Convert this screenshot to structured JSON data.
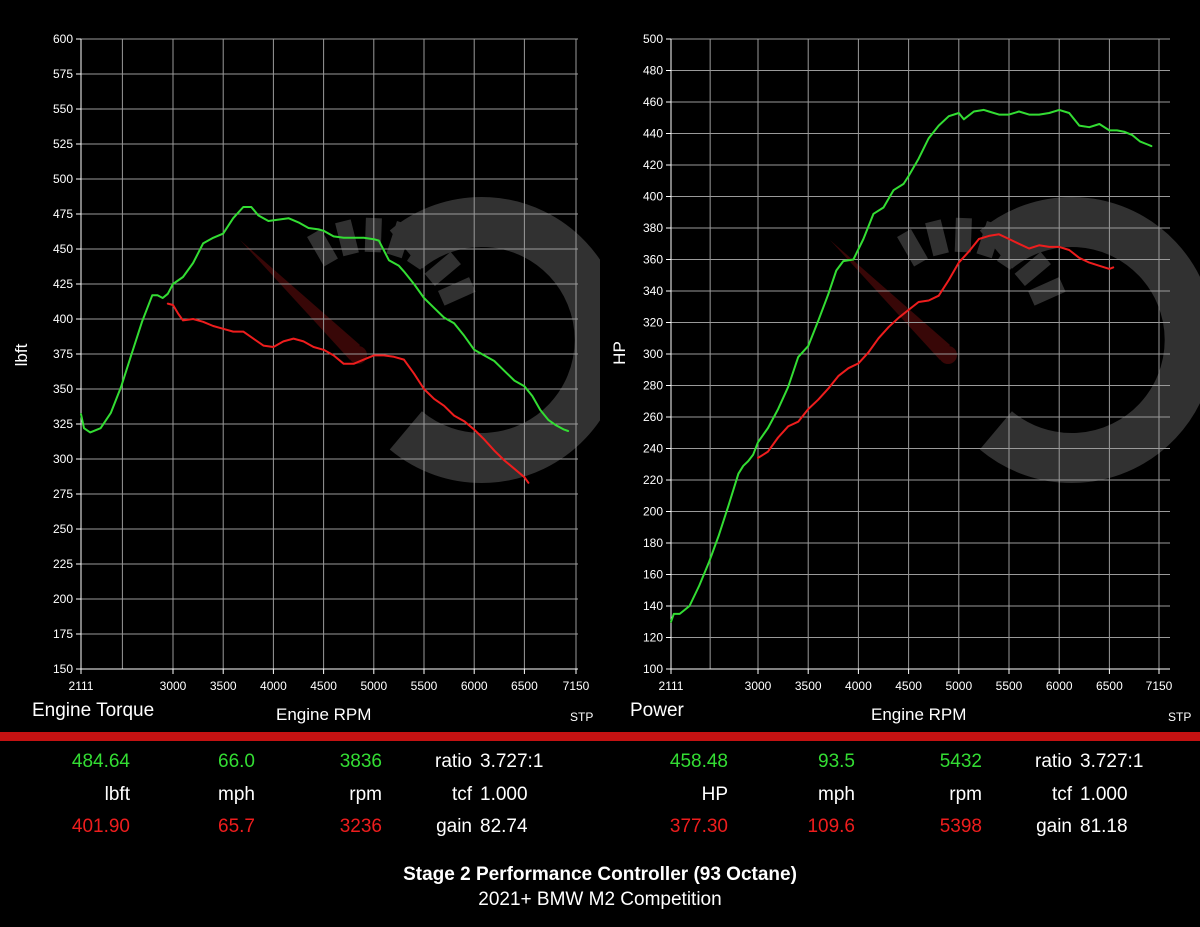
{
  "colors": {
    "series_new": "#33dd33",
    "series_stock": "#ee1d1d",
    "background": "#000000",
    "grid": "#9a9a9a",
    "bar": "#c41212"
  },
  "chart_data": [
    {
      "type": "line",
      "ylabel": "lbft",
      "title_label": "Engine Torque",
      "xlabel": "Engine RPM",
      "corner_label": "STP",
      "xlim": [
        2111,
        7150
      ],
      "ylim": [
        150,
        600
      ],
      "x_ticks": [
        "2111",
        "3000",
        "3500",
        "4000",
        "4500",
        "5000",
        "5500",
        "6000",
        "6500",
        "7150"
      ],
      "x_tick_values": [
        2111,
        3000,
        3500,
        4000,
        4500,
        5000,
        5500,
        6000,
        6500,
        7150
      ],
      "y_ticks": [
        150,
        175,
        200,
        225,
        250,
        275,
        300,
        325,
        350,
        375,
        400,
        425,
        450,
        475,
        500,
        525,
        550,
        575,
        600
      ],
      "grid": true,
      "series": [
        {
          "color": "#33dd33",
          "x": [
            2111,
            2140,
            2200,
            2300,
            2400,
            2500,
            2600,
            2700,
            2800,
            2850,
            2900,
            2950,
            3000,
            3100,
            3200,
            3300,
            3400,
            3500,
            3600,
            3700,
            3780,
            3850,
            3950,
            4050,
            4150,
            4250,
            4350,
            4450,
            4500,
            4600,
            4700,
            4800,
            4900,
            5000,
            5050,
            5150,
            5250,
            5300,
            5400,
            5500,
            5600,
            5700,
            5800,
            5900,
            6000,
            6100,
            6200,
            6300,
            6400,
            6500,
            6600,
            6700,
            6800,
            6900,
            7000,
            7050
          ],
          "y": [
            332,
            322,
            319,
            322,
            333,
            352,
            375,
            398,
            417,
            417,
            415,
            418,
            425,
            430,
            440,
            454,
            458,
            461,
            472,
            480,
            480,
            474,
            470,
            471,
            472,
            469,
            465,
            464,
            463,
            459,
            458,
            458,
            458,
            457,
            456,
            442,
            438,
            434,
            425,
            415,
            408,
            401,
            397,
            388,
            378,
            374,
            370,
            363,
            356,
            352,
            345,
            335,
            328,
            324,
            321,
            320
          ]
        },
        {
          "color": "#ee1d1d",
          "x": [
            2950,
            3000,
            3050,
            3100,
            3200,
            3300,
            3400,
            3500,
            3600,
            3700,
            3800,
            3900,
            4000,
            4100,
            4200,
            4300,
            4400,
            4500,
            4600,
            4700,
            4800,
            4900,
            5000,
            5100,
            5200,
            5300,
            5400,
            5500,
            5600,
            5700,
            5800,
            5900,
            6000,
            6100,
            6200,
            6300,
            6400,
            6500,
            6550
          ],
          "y": [
            411,
            410,
            404,
            399,
            400,
            398,
            395,
            393,
            391,
            391,
            386,
            381,
            380,
            384,
            386,
            384,
            380,
            378,
            374,
            368,
            368,
            371,
            374,
            374,
            373,
            371,
            361,
            350,
            343,
            338,
            331,
            327,
            321,
            314,
            306,
            299,
            293,
            287,
            283
          ]
        }
      ],
      "stats": {
        "new": [
          "484.64",
          "66.0",
          "3836"
        ],
        "units": [
          "lbft",
          "mph",
          "rpm"
        ],
        "stock": [
          "401.90",
          "65.7",
          "3236"
        ],
        "ratio_label": "ratio",
        "ratio_value": "3.727:1",
        "tcf_label": "tcf",
        "tcf_value": "1.000",
        "gain_label": "gain",
        "gain_value": "82.74"
      }
    },
    {
      "type": "line",
      "ylabel": "HP",
      "title_label": "Power",
      "xlabel": "Engine RPM",
      "corner_label": "STP",
      "xlim": [
        2111,
        7150
      ],
      "ylim": [
        100,
        500
      ],
      "x_ticks": [
        "2111",
        "3000",
        "3500",
        "4000",
        "4500",
        "5000",
        "5500",
        "6000",
        "6500",
        "7150"
      ],
      "x_tick_values": [
        2111,
        3000,
        3500,
        4000,
        4500,
        5000,
        5500,
        6000,
        6500,
        7150
      ],
      "y_ticks": [
        100,
        120,
        140,
        160,
        180,
        200,
        220,
        240,
        260,
        280,
        300,
        320,
        340,
        360,
        380,
        400,
        420,
        440,
        460,
        480,
        500
      ],
      "grid": true,
      "series": [
        {
          "color": "#33dd33",
          "x": [
            2111,
            2140,
            2200,
            2300,
            2400,
            2500,
            2600,
            2700,
            2800,
            2850,
            2900,
            2950,
            3000,
            3100,
            3200,
            3300,
            3400,
            3500,
            3600,
            3700,
            3780,
            3850,
            3950,
            4050,
            4150,
            4250,
            4350,
            4450,
            4500,
            4600,
            4700,
            4800,
            4900,
            5000,
            5050,
            5150,
            5250,
            5300,
            5400,
            5500,
            5600,
            5700,
            5800,
            5900,
            6000,
            6100,
            6200,
            6300,
            6400,
            6500,
            6600,
            6700,
            6800,
            6900,
            7000,
            7050
          ],
          "y": [
            130,
            135,
            135,
            140,
            153,
            168,
            185,
            204,
            224,
            229,
            232,
            236,
            244,
            253,
            265,
            279,
            298,
            305,
            321,
            338,
            353,
            359,
            360,
            373,
            389,
            393,
            404,
            408,
            413,
            424,
            437,
            445,
            451,
            453,
            449,
            454,
            455,
            454,
            452,
            452,
            454,
            452,
            452,
            453,
            455,
            453,
            445,
            444,
            446,
            442,
            442,
            441,
            439,
            435,
            433,
            432
          ]
        },
        {
          "color": "#ee1d1d",
          "x": [
            3000,
            3050,
            3100,
            3200,
            3300,
            3400,
            3500,
            3600,
            3700,
            3800,
            3900,
            4000,
            4100,
            4200,
            4300,
            4400,
            4500,
            4600,
            4700,
            4800,
            4900,
            5000,
            5100,
            5200,
            5300,
            5400,
            5500,
            5600,
            5700,
            5800,
            5900,
            6000,
            6100,
            6200,
            6300,
            6400,
            6500,
            6550
          ],
          "y": [
            234,
            236,
            238,
            247,
            254,
            257,
            265,
            271,
            278,
            286,
            291,
            294,
            301,
            310,
            317,
            323,
            328,
            333,
            334,
            337,
            347,
            358,
            365,
            373,
            375,
            376,
            373,
            370,
            367,
            369,
            368,
            368,
            366,
            361,
            358,
            356,
            354,
            355
          ]
        }
      ],
      "stats": {
        "new": [
          "458.48",
          "93.5",
          "5432"
        ],
        "units": [
          "HP",
          "mph",
          "rpm"
        ],
        "stock": [
          "377.30",
          "109.6",
          "5398"
        ],
        "ratio_label": "ratio",
        "ratio_value": "3.727:1",
        "tcf_label": "tcf",
        "tcf_value": "1.000",
        "gain_label": "gain",
        "gain_value": "81.18"
      }
    }
  ],
  "footer": {
    "title": "Stage 2 Performance Controller (93 Octane)",
    "subtitle": "2021+ BMW M2 Competition"
  }
}
